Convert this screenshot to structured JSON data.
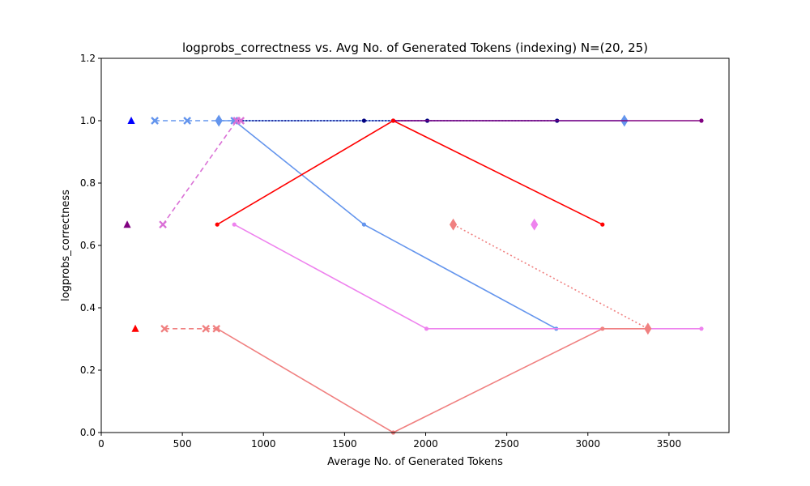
{
  "chart_data": {
    "type": "line",
    "title": "logprobs_correctness vs. Avg No. of Generated Tokens (indexing) N=(20, 25)",
    "xlabel": "Average No. of Generated Tokens",
    "ylabel": "logprobs_correctness",
    "xlim": [
      0,
      3870
    ],
    "ylim": [
      0,
      1.2
    ],
    "xticks": [
      0,
      500,
      1000,
      1500,
      2000,
      2500,
      3000,
      3500
    ],
    "yticks": [
      0.0,
      0.2,
      0.4,
      0.6,
      0.8,
      1.0,
      1.2
    ],
    "grid": false,
    "series": [
      {
        "color": "#6495ED",
        "dash": "none",
        "marker": "dot",
        "points": [
          [
            820,
            1.0
          ],
          [
            1620,
            0.667
          ],
          [
            2805,
            0.333
          ]
        ]
      },
      {
        "color": "#6495ED",
        "dash": "6,4",
        "marker": "x",
        "points": [
          [
            330,
            1.0
          ],
          [
            530,
            1.0
          ],
          [
            820,
            1.0
          ]
        ]
      },
      {
        "color": "#6495ED",
        "dash": "none",
        "marker": "diamond",
        "points": [
          [
            725,
            1.0
          ],
          [
            3225,
            1.0
          ]
        ]
      },
      {
        "color": "#000080",
        "dash": "2,2",
        "marker": "dot",
        "points": [
          [
            850,
            1.0
          ],
          [
            1620,
            1.0
          ],
          [
            2010,
            1.0
          ],
          [
            2810,
            1.0
          ]
        ]
      },
      {
        "color": "#800080",
        "dash": "none",
        "marker": "dot",
        "points": [
          [
            1800,
            1.0
          ],
          [
            3700,
            1.0
          ]
        ]
      },
      {
        "color": "#FF0000",
        "dash": "none",
        "marker": "dot",
        "points": [
          [
            715,
            0.667
          ],
          [
            1800,
            1.0
          ],
          [
            3090,
            0.667
          ]
        ]
      },
      {
        "color": "#EE82EE",
        "dash": "none",
        "marker": "dot",
        "points": [
          [
            820,
            0.667
          ],
          [
            2005,
            0.333
          ],
          [
            3700,
            0.333
          ]
        ]
      },
      {
        "color": "#DA70D6",
        "dash": "6,4",
        "marker": "x",
        "points": [
          [
            380,
            0.667
          ],
          [
            835,
            1.0
          ],
          [
            860,
            1.0
          ]
        ]
      },
      {
        "color": "#EE82EE",
        "dash": "none",
        "marker": "diamond",
        "points": [
          [
            2670,
            0.667
          ]
        ]
      },
      {
        "color": "#F08080",
        "dash": "none",
        "marker": "dot",
        "points": [
          [
            715,
            0.333
          ],
          [
            1800,
            0.0
          ],
          [
            3090,
            0.333
          ],
          [
            3370,
            0.333
          ]
        ]
      },
      {
        "color": "#F08080",
        "dash": "6,4",
        "marker": "x",
        "points": [
          [
            390,
            0.333
          ],
          [
            645,
            0.333
          ],
          [
            710,
            0.333
          ]
        ]
      },
      {
        "color": "#F08080",
        "dash": "2,3",
        "marker": "diamond",
        "points": [
          [
            2170,
            0.667
          ],
          [
            3370,
            0.333
          ]
        ]
      },
      {
        "color": "#0000FF",
        "dash": "none",
        "marker": "triangle",
        "points": [
          [
            185,
            1.0
          ]
        ]
      },
      {
        "color": "#800080",
        "dash": "none",
        "marker": "triangle",
        "points": [
          [
            160,
            0.667
          ]
        ]
      },
      {
        "color": "#FF0000",
        "dash": "none",
        "marker": "triangle",
        "points": [
          [
            210,
            0.333
          ]
        ]
      }
    ]
  }
}
